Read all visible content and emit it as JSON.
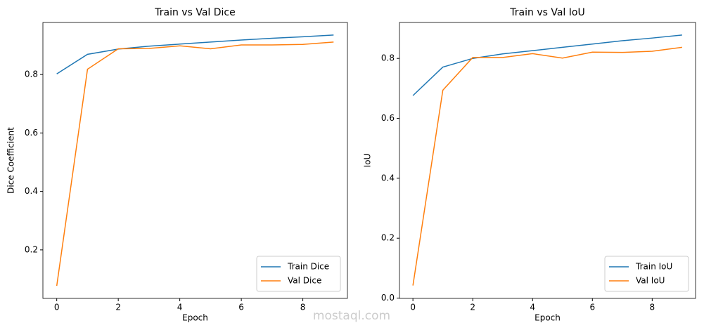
{
  "chart_data": [
    {
      "type": "line",
      "title": "Train vs Val Dice",
      "x_label": "Epoch",
      "y_label": "Dice Coefficient",
      "x": [
        0,
        1,
        2,
        3,
        4,
        5,
        6,
        7,
        8,
        9
      ],
      "series": [
        {
          "name": "Train Dice",
          "color": "#1f77b4",
          "values": [
            0.802,
            0.869,
            0.887,
            0.897,
            0.904,
            0.911,
            0.918,
            0.924,
            0.929,
            0.935
          ]
        },
        {
          "name": "Val Dice",
          "color": "#ff7f0e",
          "values": [
            0.077,
            0.818,
            0.888,
            0.889,
            0.898,
            0.888,
            0.901,
            0.901,
            0.903,
            0.911
          ]
        }
      ],
      "xlim": [
        -0.45,
        9.45
      ],
      "xticks": [
        0,
        2,
        4,
        6,
        8
      ],
      "ylim": [
        0.034,
        0.978
      ],
      "yticks": [
        0.2,
        0.4,
        0.6,
        0.8
      ],
      "legend": "lower right",
      "grid": false
    },
    {
      "type": "line",
      "title": "Train vs Val IoU",
      "x_label": "Epoch",
      "y_label": "IoU",
      "x": [
        0,
        1,
        2,
        3,
        4,
        5,
        6,
        7,
        8,
        9
      ],
      "series": [
        {
          "name": "Train IoU",
          "color": "#1f77b4",
          "values": [
            0.676,
            0.771,
            0.8,
            0.815,
            0.826,
            0.837,
            0.848,
            0.859,
            0.868,
            0.878
          ]
        },
        {
          "name": "Val IoU",
          "color": "#ff7f0e",
          "values": [
            0.042,
            0.694,
            0.803,
            0.803,
            0.816,
            0.801,
            0.821,
            0.82,
            0.824,
            0.837
          ]
        }
      ],
      "xlim": [
        -0.45,
        9.45
      ],
      "xticks": [
        0,
        2,
        4,
        6,
        8
      ],
      "ylim": [
        -0.001,
        0.92
      ],
      "yticks": [
        {
          "value": 0,
          "label": "0.0"
        },
        0.2,
        0.4,
        0.6,
        0.8
      ],
      "legend": "lower right",
      "grid": false
    }
  ],
  "watermark": "mostaql.com"
}
